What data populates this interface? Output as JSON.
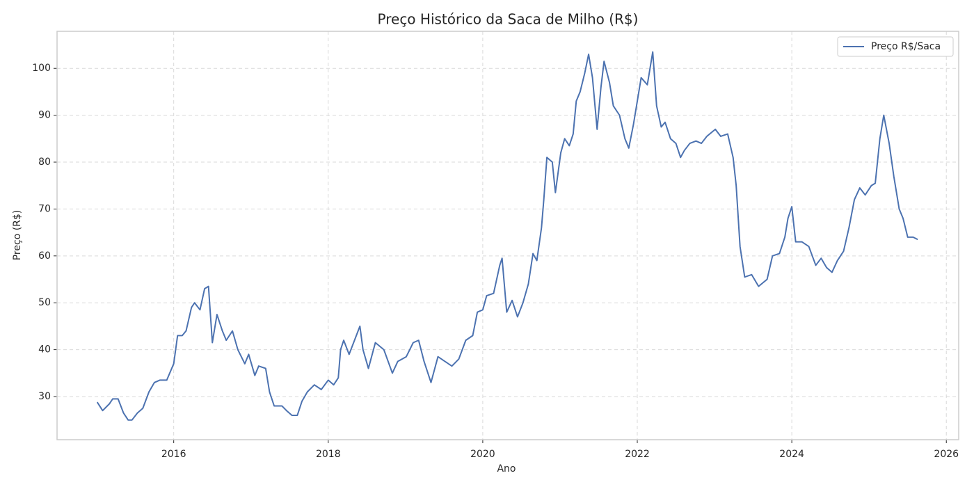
{
  "chart_data": {
    "type": "line",
    "title": "Preço Histórico da Saca de Milho (R$)",
    "x_label": "Ano",
    "y_label": "Preço (R$)",
    "xlim": [
      2014.49,
      2026.16
    ],
    "ylim": [
      20.8,
      107.9
    ],
    "xticks": [
      2016,
      2018,
      2020,
      2022,
      2024,
      2026
    ],
    "yticks": [
      30,
      40,
      50,
      60,
      70,
      80,
      90,
      100
    ],
    "grid": true,
    "legend": "upper right",
    "x": [
      2015.01,
      2015.08,
      2015.17,
      2015.21,
      2015.28,
      2015.35,
      2015.41,
      2015.46,
      2015.53,
      2015.6,
      2015.68,
      2015.75,
      2015.82,
      2015.91,
      2016.0,
      2016.05,
      2016.11,
      2016.16,
      2016.23,
      2016.27,
      2016.34,
      2016.4,
      2016.45,
      2016.5,
      2016.56,
      2016.63,
      2016.68,
      2016.76,
      2016.83,
      2016.92,
      2016.97,
      2017.05,
      2017.1,
      2017.19,
      2017.24,
      2017.3,
      2017.4,
      2017.46,
      2017.53,
      2017.6,
      2017.66,
      2017.73,
      2017.82,
      2017.91,
      2018.0,
      2018.07,
      2018.13,
      2018.16,
      2018.2,
      2018.27,
      2018.34,
      2018.41,
      2018.45,
      2018.52,
      2018.61,
      2018.72,
      2018.83,
      2018.9,
      2019.01,
      2019.1,
      2019.17,
      2019.24,
      2019.33,
      2019.42,
      2019.51,
      2019.6,
      2019.69,
      2019.78,
      2019.87,
      2019.93,
      2020.0,
      2020.05,
      2020.14,
      2020.22,
      2020.25,
      2020.31,
      2020.38,
      2020.45,
      2020.52,
      2020.59,
      2020.65,
      2020.7,
      2020.76,
      2020.79,
      2020.83,
      2020.9,
      2020.94,
      2021.01,
      2021.06,
      2021.12,
      2021.17,
      2021.21,
      2021.26,
      2021.32,
      2021.37,
      2021.42,
      2021.48,
      2021.53,
      2021.57,
      2021.64,
      2021.69,
      2021.77,
      2021.84,
      2021.89,
      2021.95,
      2022.0,
      2022.05,
      2022.13,
      2022.2,
      2022.25,
      2022.31,
      2022.36,
      2022.43,
      2022.5,
      2022.56,
      2022.61,
      2022.68,
      2022.76,
      2022.83,
      2022.9,
      2023.01,
      2023.08,
      2023.17,
      2023.24,
      2023.28,
      2023.33,
      2023.39,
      2023.48,
      2023.57,
      2023.68,
      2023.75,
      2023.84,
      2023.91,
      2023.95,
      2024.0,
      2024.05,
      2024.13,
      2024.22,
      2024.31,
      2024.38,
      2024.45,
      2024.52,
      2024.59,
      2024.67,
      2024.74,
      2024.81,
      2024.88,
      2024.95,
      2025.03,
      2025.08,
      2025.14,
      2025.19,
      2025.26,
      2025.32,
      2025.39,
      2025.44,
      2025.5,
      2025.57,
      2025.63
    ],
    "series": [
      {
        "name": "Preço R$/Saca",
        "color": "#4c72b0",
        "values": [
          28.8,
          27,
          28.5,
          29.5,
          29.5,
          26.5,
          25,
          25,
          26.5,
          27.5,
          31,
          33,
          33.5,
          33.5,
          37,
          43,
          43,
          44,
          49,
          50,
          48.5,
          53,
          53.5,
          41.5,
          47.5,
          44,
          42,
          44,
          40,
          37,
          39,
          34.5,
          36.5,
          36,
          31,
          28,
          28,
          27,
          26,
          26,
          29,
          31,
          32.5,
          31.5,
          33.5,
          32.5,
          34,
          40,
          42,
          39,
          42,
          45,
          40,
          36,
          41.5,
          40,
          35,
          37.5,
          38.5,
          41.5,
          42,
          37.5,
          33,
          38.5,
          37.5,
          36.5,
          38,
          42,
          43,
          48,
          48.5,
          51.5,
          52,
          58,
          59.5,
          48,
          50.5,
          47,
          50,
          54,
          60.5,
          59,
          66,
          72,
          81,
          80,
          73.5,
          82,
          85,
          83.5,
          86,
          93,
          95,
          99,
          103,
          98,
          87,
          96,
          101.5,
          97,
          92,
          90,
          85,
          83,
          88,
          93,
          98,
          96.5,
          103.5,
          92,
          87.5,
          88.5,
          85,
          84,
          81,
          82.5,
          84,
          84.5,
          84,
          85.5,
          87,
          85.5,
          86,
          81,
          75,
          62,
          55.5,
          56,
          53.5,
          55,
          60,
          60.5,
          64,
          68,
          70.5,
          63,
          63,
          62,
          58,
          59.5,
          57.5,
          56.5,
          59,
          61,
          66,
          72,
          74.5,
          73,
          75,
          75.5,
          85,
          90,
          84,
          77,
          70,
          68,
          64,
          64,
          63.5
        ]
      }
    ]
  }
}
